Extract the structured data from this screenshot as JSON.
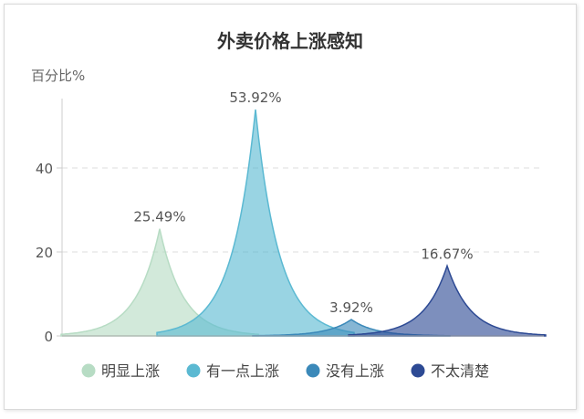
{
  "chart_data": {
    "type": "area",
    "title": "外卖价格上涨感知",
    "ylabel": "百分比%",
    "xlabel": "",
    "ylim": [
      0,
      54
    ],
    "yticks": [
      0,
      20,
      40
    ],
    "grid": true,
    "legend_position": "bottom",
    "series": [
      {
        "name": "明显上涨",
        "value": 25.49,
        "label": "25.49%",
        "color": "#b7dcc4"
      },
      {
        "name": "有一点上涨",
        "value": 53.92,
        "label": "53.92%",
        "color": "#5bb9d2"
      },
      {
        "name": "没有上涨",
        "value": 3.92,
        "label": "3.92%",
        "color": "#3b89b9"
      },
      {
        "name": "不太清楚",
        "value": 16.67,
        "label": "16.67%",
        "color": "#2d4a94"
      }
    ]
  }
}
